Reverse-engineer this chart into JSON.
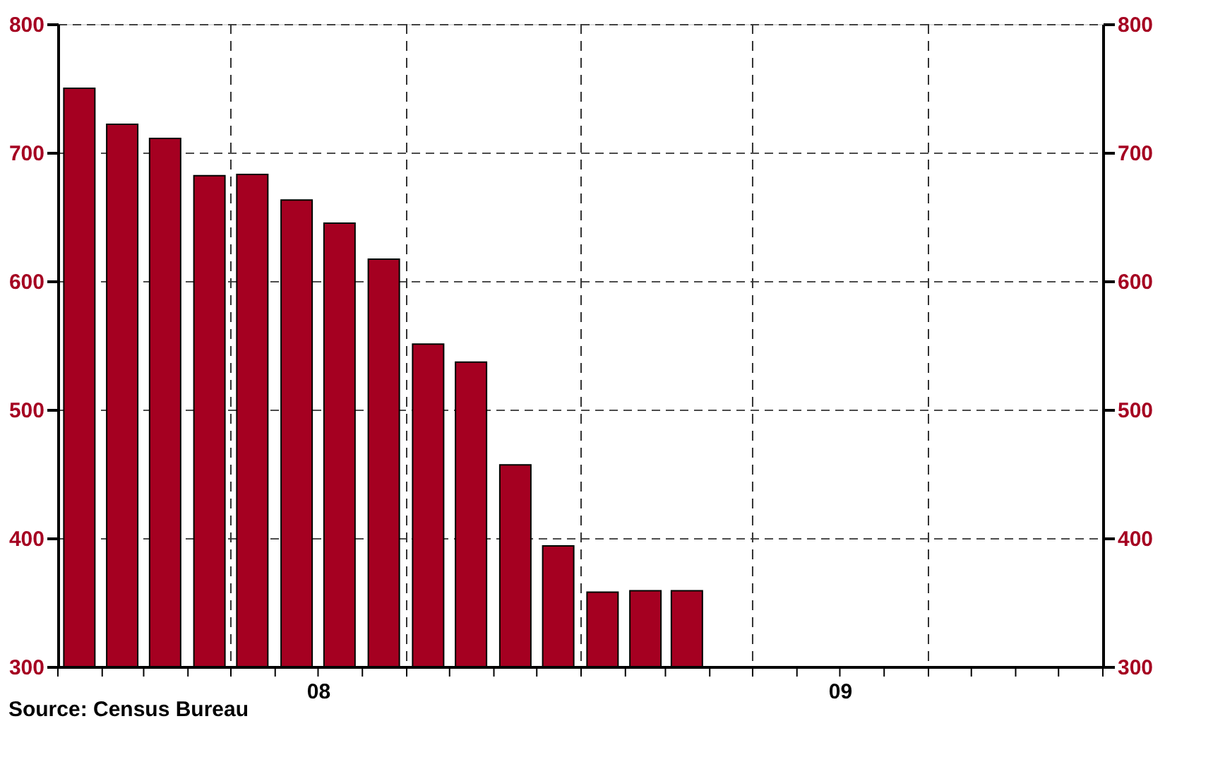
{
  "chart_data": {
    "type": "bar",
    "x": [
      "2008-01-16",
      "2008-02-15",
      "2008-03-16",
      "2008-04-16",
      "2008-05-16",
      "2008-06-16",
      "2008-07-16",
      "2008-08-16",
      "2008-09-16",
      "2008-10-16",
      "2008-11-16",
      "2008-12-16",
      "2009-01-16",
      "2009-02-15",
      "2009-03-16"
    ],
    "values": [
      750,
      722,
      711,
      682,
      683,
      663,
      645,
      617,
      551,
      537,
      457,
      394,
      358,
      359,
      359
    ],
    "color": "#a50021",
    "xlim": [
      "2008-01-01",
      "2010-01-01"
    ],
    "xticks": [
      {
        "value": "2008-01-01",
        "label": null
      },
      {
        "value": "2008-02-01",
        "label": null
      },
      {
        "value": "2008-03-01",
        "label": null
      },
      {
        "value": "2008-04-01",
        "label": null
      },
      {
        "value": "2008-05-01",
        "label": null
      },
      {
        "value": "2008-06-01",
        "label": null
      },
      {
        "value": "2008-07-01",
        "label": "08"
      },
      {
        "value": "2008-08-01",
        "label": null
      },
      {
        "value": "2008-09-01",
        "label": null
      },
      {
        "value": "2008-10-01",
        "label": null
      },
      {
        "value": "2008-11-01",
        "label": null
      },
      {
        "value": "2008-12-01",
        "label": null
      },
      {
        "value": "2009-01-01",
        "label": null
      },
      {
        "value": "2009-02-01",
        "label": null
      },
      {
        "value": "2009-03-01",
        "label": null
      },
      {
        "value": "2009-04-01",
        "label": null
      },
      {
        "value": "2009-05-01",
        "label": null
      },
      {
        "value": "2009-06-01",
        "label": null
      },
      {
        "value": "2009-07-01",
        "label": "09"
      },
      {
        "value": "2009-08-01",
        "label": null
      },
      {
        "value": "2009-09-01",
        "label": null
      },
      {
        "value": "2009-10-01",
        "label": null
      },
      {
        "value": "2009-11-01",
        "label": null
      },
      {
        "value": "2009-12-01",
        "label": null
      },
      {
        "value": "2010-01-01",
        "label": null
      }
    ],
    "ylim": [
      300,
      800
    ],
    "yticks": [
      300,
      400,
      500,
      600,
      700,
      800
    ],
    "y2lim": [
      300,
      800
    ],
    "y2ticks": [
      300,
      400,
      500,
      600,
      700,
      800
    ],
    "grid": "y",
    "ref_lines": [
      {
        "axis": "x",
        "value": "2008-05-01",
        "line_style": "dashed"
      },
      {
        "axis": "x",
        "value": "2008-09-01",
        "line_style": "dashed"
      },
      {
        "axis": "x",
        "value": "2009-01-01",
        "line_style": "dashed"
      },
      {
        "axis": "x",
        "value": "2009-05-01",
        "line_style": "dashed"
      },
      {
        "axis": "x",
        "value": "2009-09-01",
        "line_style": "dashed"
      }
    ],
    "annotations": [
      "Source:  Census Bureau"
    ]
  }
}
